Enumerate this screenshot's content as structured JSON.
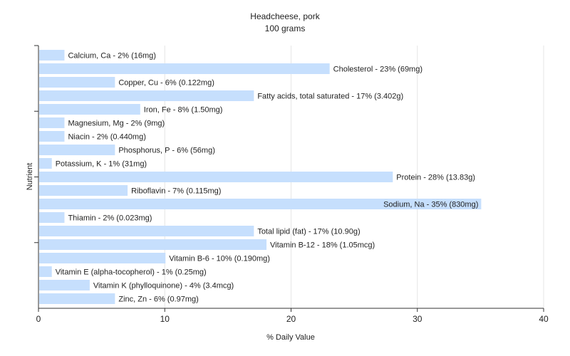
{
  "chart_data": {
    "type": "bar",
    "orientation": "horizontal",
    "title": "Headcheese, pork",
    "subtitle": "100 grams",
    "xlabel": "% Daily Value",
    "ylabel": "Nutrient",
    "xlim": [
      0,
      40
    ],
    "xticks": [
      0,
      10,
      20,
      30,
      40
    ],
    "grid": true,
    "bar_color": "#c6dffd",
    "categories": [
      "Calcium, Ca",
      "Cholesterol",
      "Copper, Cu",
      "Fatty acids, total saturated",
      "Iron, Fe",
      "Magnesium, Mg",
      "Niacin",
      "Phosphorus, P",
      "Potassium, K",
      "Protein",
      "Riboflavin",
      "Sodium, Na",
      "Thiamin",
      "Total lipid (fat)",
      "Vitamin B-12",
      "Vitamin B-6",
      "Vitamin E (alpha-tocopherol)",
      "Vitamin K (phylloquinone)",
      "Zinc, Zn"
    ],
    "values": [
      2,
      23,
      6,
      17,
      8,
      2,
      2,
      6,
      1,
      28,
      7,
      35,
      2,
      17,
      18,
      10,
      1,
      4,
      6
    ],
    "data_labels": [
      "Calcium, Ca - 2% (16mg)",
      "Cholesterol - 23% (69mg)",
      "Copper, Cu - 6% (0.122mg)",
      "Fatty acids, total saturated - 17% (3.402g)",
      "Iron, Fe - 8% (1.50mg)",
      "Magnesium, Mg - 2% (9mg)",
      "Niacin - 2% (0.440mg)",
      "Phosphorus, P - 6% (56mg)",
      "Potassium, K - 1% (31mg)",
      "Protein - 28% (13.83g)",
      "Riboflavin - 7% (0.115mg)",
      "Sodium, Na - 35% (830mg)",
      "Thiamin - 2% (0.023mg)",
      "Total lipid (fat) - 17% (10.90g)",
      "Vitamin B-12 - 18% (1.05mcg)",
      "Vitamin B-6 - 10% (0.190mg)",
      "Vitamin E (alpha-tocopherol) - 1% (0.25mg)",
      "Vitamin K (phylloquinone) - 4% (3.4mcg)",
      "Zinc, Zn - 6% (0.97mg)"
    ]
  }
}
